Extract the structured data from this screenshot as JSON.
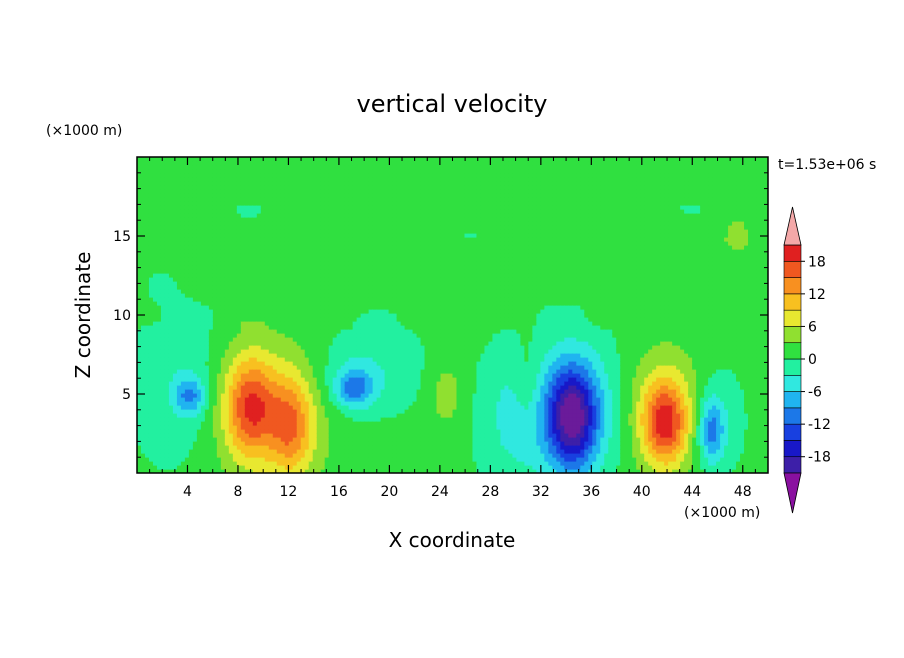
{
  "chart_data": {
    "type": "heatmap",
    "title": "vertical velocity",
    "xlabel": "X coordinate",
    "ylabel": "Z coordinate",
    "x_unit": "(×1000 m)",
    "y_unit": "(×1000 m)",
    "time_label": "t=1.53e+06 s",
    "xlim": [
      0,
      50
    ],
    "ylim": [
      0,
      20
    ],
    "x_ticks": [
      4,
      8,
      12,
      16,
      20,
      24,
      28,
      32,
      36,
      40,
      44,
      48
    ],
    "y_ticks": [
      5,
      10,
      15
    ],
    "colorbar": {
      "levels": [
        -21,
        -18,
        -15,
        -12,
        -9,
        -6,
        -3,
        0,
        3,
        6,
        9,
        12,
        15,
        18,
        21
      ],
      "labels": [
        18,
        12,
        6,
        0,
        -6,
        -12,
        -18
      ],
      "colors": [
        "#6a1b9a",
        "#3d1fa8",
        "#1818c8",
        "#1840e0",
        "#1c78e8",
        "#20b4f0",
        "#30e8e0",
        "#22f0a0",
        "#30e040",
        "#90e030",
        "#e8e830",
        "#f8c020",
        "#f89020",
        "#f05820",
        "#e02020",
        "#f0a0a0"
      ],
      "extend_low_color": "#8a10a0",
      "extend_high_color": "#f4a8a8"
    },
    "features": [
      {
        "x": 4.2,
        "z": 4.9,
        "value": -9,
        "sx": 0.8,
        "sz": 0.8
      },
      {
        "x": 3.5,
        "z": 5.5,
        "value": -4,
        "sx": 2.5,
        "sz": 3.5
      },
      {
        "x": 9.0,
        "z": 4.2,
        "value": 14,
        "sx": 1.4,
        "sz": 2.2
      },
      {
        "x": 12.2,
        "z": 3.0,
        "value": 11,
        "sx": 1.2,
        "sz": 2.2
      },
      {
        "x": 10.5,
        "z": 4.0,
        "value": 5,
        "sx": 4.0,
        "sz": 3.5
      },
      {
        "x": 17.2,
        "z": 5.4,
        "value": -10,
        "sx": 1.1,
        "sz": 0.9
      },
      {
        "x": 18.0,
        "z": 6.5,
        "value": -4,
        "sx": 3.0,
        "sz": 2.0
      },
      {
        "x": 24.5,
        "z": 5.0,
        "value": 4,
        "sx": 1.0,
        "sz": 1.5
      },
      {
        "x": 30.0,
        "z": 3.5,
        "value": -4,
        "sx": 2.0,
        "sz": 3.0
      },
      {
        "x": 31.0,
        "z": 5.5,
        "value": 4,
        "sx": 0.8,
        "sz": 2.0
      },
      {
        "x": 34.5,
        "z": 3.5,
        "value": -18,
        "sx": 1.3,
        "sz": 2.2
      },
      {
        "x": 35.0,
        "z": 4.0,
        "value": -8,
        "sx": 3.0,
        "sz": 3.0
      },
      {
        "x": 41.8,
        "z": 3.2,
        "value": 15,
        "sx": 1.2,
        "sz": 1.8
      },
      {
        "x": 41.5,
        "z": 4.0,
        "value": 6,
        "sx": 3.0,
        "sz": 3.0
      },
      {
        "x": 45.5,
        "z": 2.7,
        "value": -10,
        "sx": 0.7,
        "sz": 1.4
      },
      {
        "x": 46.0,
        "z": 3.5,
        "value": -4,
        "sx": 1.5,
        "sz": 2.5
      },
      {
        "x": 47.5,
        "z": 15.0,
        "value": 4,
        "sx": 1.0,
        "sz": 1.0
      },
      {
        "x": 25.0,
        "z": 19.5,
        "value": 2,
        "sx": 8.0,
        "sz": 1.5
      }
    ]
  }
}
